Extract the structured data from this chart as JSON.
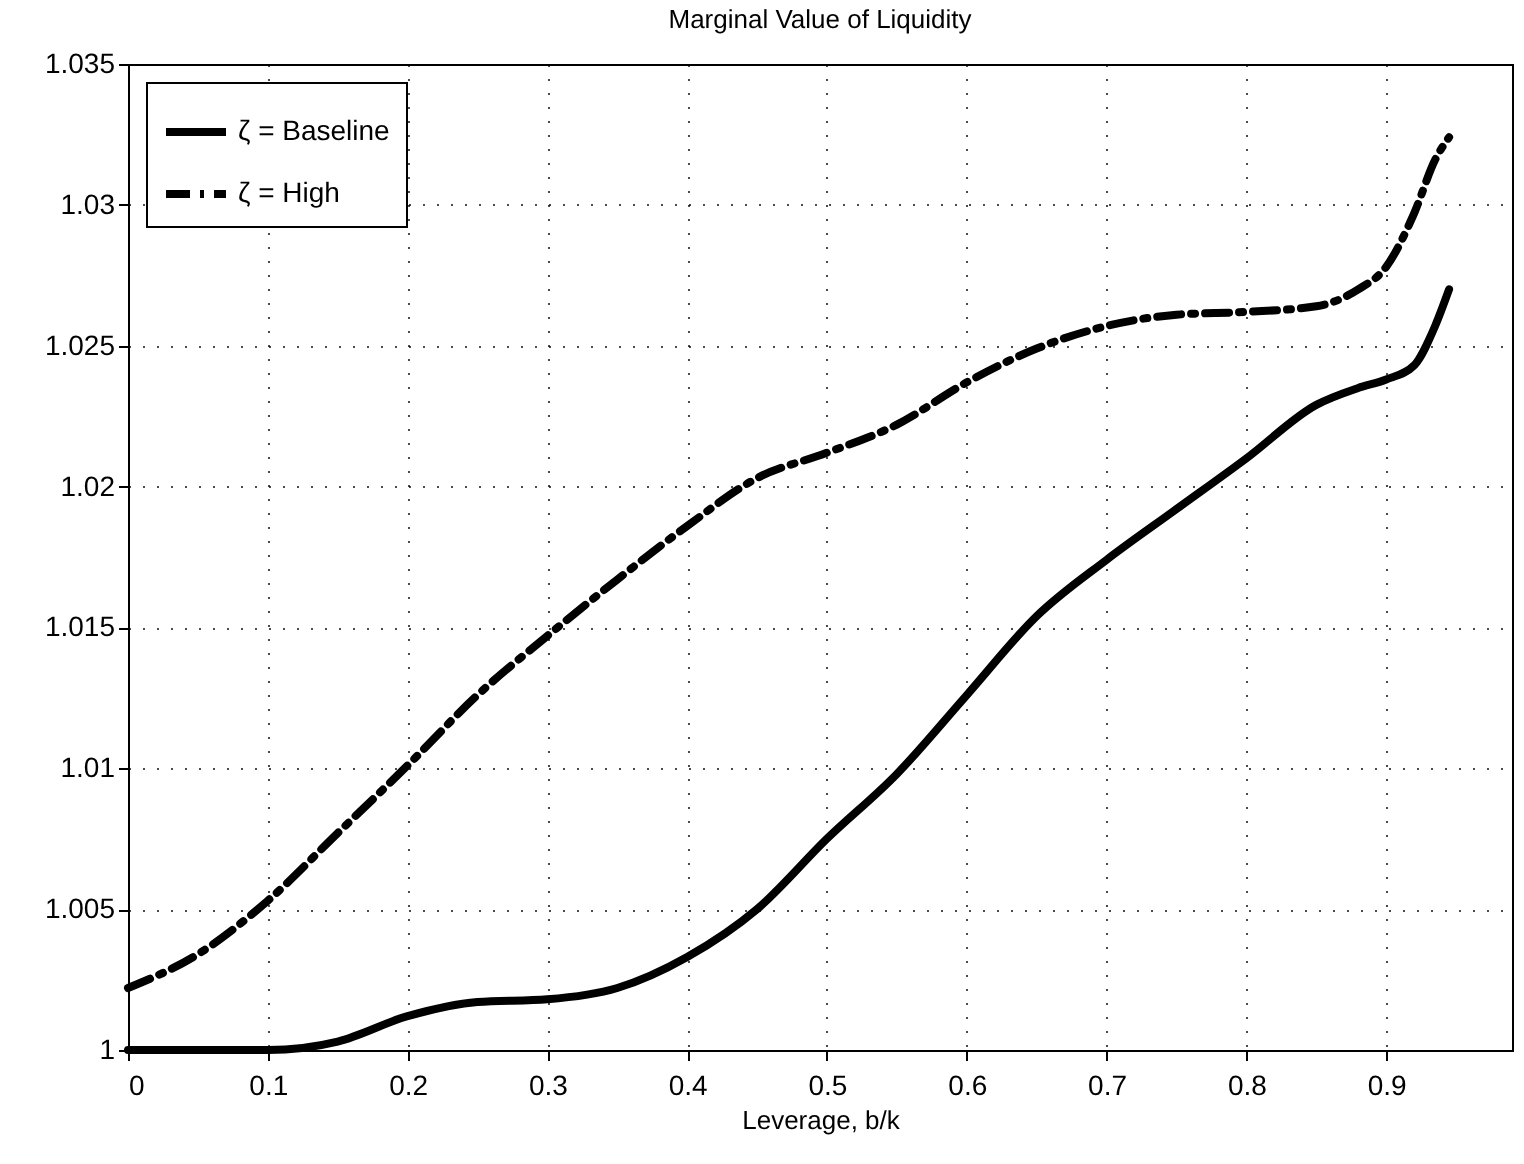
{
  "chart_data": {
    "type": "line",
    "title": "Marginal Value of Liquidity",
    "xlabel": "Leverage, b/k",
    "x": [
      0,
      0.05,
      0.1,
      0.15,
      0.2,
      0.25,
      0.3,
      0.35,
      0.4,
      0.45,
      0.5,
      0.55,
      0.6,
      0.65,
      0.7,
      0.75,
      0.8,
      0.85,
      0.88,
      0.9,
      0.92,
      0.935,
      0.945
    ],
    "series": [
      {
        "name": "ζ = Baseline",
        "color": "#000000",
        "line_style": "solid",
        "values": [
          1.0,
          1.0,
          1.0,
          1.0003,
          1.0012,
          1.0017,
          1.0018,
          1.0022,
          1.0033,
          1.005,
          1.0075,
          1.0098,
          1.0126,
          1.0154,
          1.0174,
          1.0192,
          1.021,
          1.0229,
          1.0235,
          1.0238,
          1.0243,
          1.0257,
          1.027
        ]
      },
      {
        "name": "ζ = High",
        "color": "#000000",
        "line_style": "dashdot",
        "values": [
          1.0022,
          1.0034,
          1.0053,
          1.0077,
          1.0101,
          1.0126,
          1.0147,
          1.0167,
          1.0186,
          1.0203,
          1.0212,
          1.0222,
          1.0237,
          1.0249,
          1.0257,
          1.0261,
          1.0262,
          1.0264,
          1.027,
          1.0278,
          1.0297,
          1.0316,
          1.0324
        ]
      }
    ],
    "xlim": [
      0,
      0.99
    ],
    "xticks": [
      0,
      0.1,
      0.2,
      0.3,
      0.4,
      0.5,
      0.6,
      0.7,
      0.8,
      0.9
    ],
    "ylim": [
      1,
      1.035
    ],
    "yticks": [
      1,
      1.005,
      1.01,
      1.015,
      1.02,
      1.025,
      1.03,
      1.035
    ],
    "grid": true,
    "legend": "top left"
  }
}
